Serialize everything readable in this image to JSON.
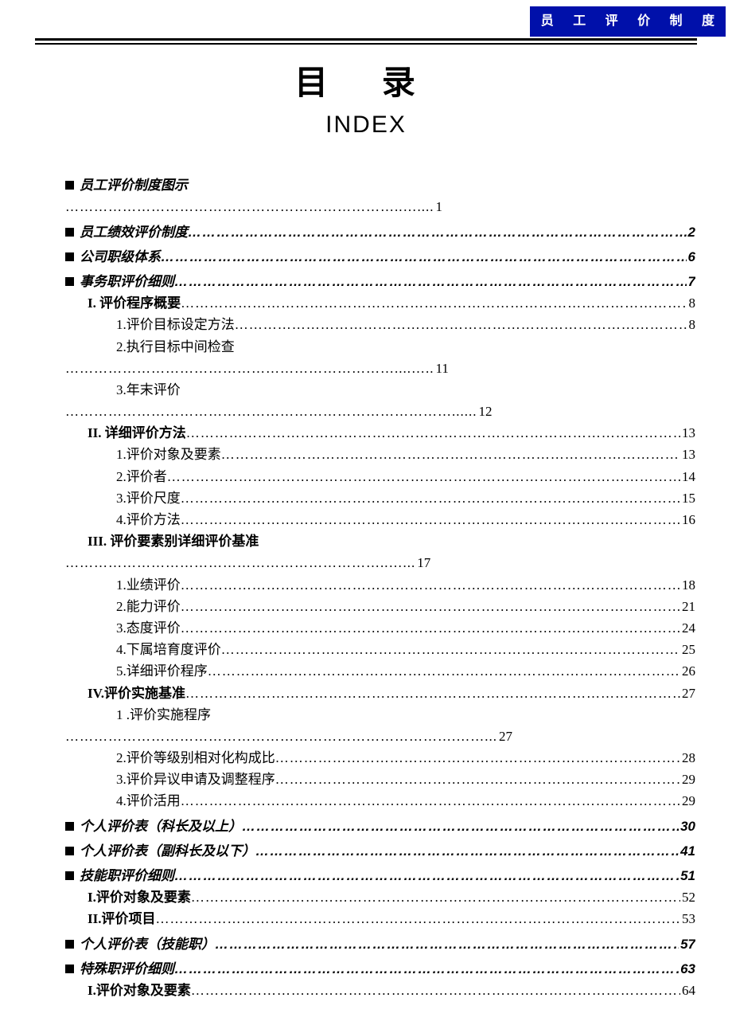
{
  "header_badge": "员 工 评 价 制 度",
  "title_cn": "目   录",
  "title_en": "INDEX",
  "toc": [
    {
      "level": 0,
      "label": "员工评价制度图示",
      "page": null
    },
    {
      "standalone_leader": true,
      "leader_text": "……………………………………………………………..…....",
      "page": "1"
    },
    {
      "level": 0,
      "label": "员工绩效评价制度",
      "page": "2"
    },
    {
      "level": 0,
      "label": "公司职级体系",
      "page": "6"
    },
    {
      "level": 0,
      "label": "事务职评价细则",
      "page": "7"
    },
    {
      "level": 1,
      "label": "I. 评价程序概要",
      "page": "8"
    },
    {
      "level": 2,
      "label": "1.评价目标设定方法",
      "page": "8"
    },
    {
      "level": 2,
      "label": "2.执行目标中间检查",
      "page": null
    },
    {
      "standalone_leader": true,
      "leader_text": "……………………………………………………………....…..",
      "page": "11"
    },
    {
      "level": 2,
      "label": "3.年末评价",
      "page": null
    },
    {
      "standalone_leader": true,
      "leader_text": "………………………………………………………………………......",
      "page": "12"
    },
    {
      "level": 1,
      "label": "II. 详细评价方法",
      "page": "13"
    },
    {
      "level": 2,
      "label": "1.评价对象及要素",
      "page": "13"
    },
    {
      "level": 2,
      "label": "2.评价者",
      "page": "14"
    },
    {
      "level": 2,
      "label": "3.评价尺度",
      "page": "15"
    },
    {
      "level": 2,
      "label": "4.评价方法",
      "page": "16"
    },
    {
      "level": 1,
      "label": "III. 评价要素别详细评价基准",
      "page": null
    },
    {
      "standalone_leader": true,
      "leader_text": "…………………………………………………………..…...",
      "page": "17"
    },
    {
      "level": 2,
      "label": "1.业绩评价",
      "page": "18"
    },
    {
      "level": 2,
      "label": "2.能力评价",
      "page": "21"
    },
    {
      "level": 2,
      "label": "3.态度评价",
      "page": "24"
    },
    {
      "level": 2,
      "label": "4.下属培育度评价",
      "page": "25"
    },
    {
      "level": 2,
      "label": "5.详细评价程序",
      "page": "26"
    },
    {
      "level": 1,
      "label": "IV.评价实施基准",
      "page": "27"
    },
    {
      "level": 2,
      "label": "1 .评价实施程序",
      "page": null
    },
    {
      "standalone_leader": true,
      "leader_text": "……………………………………………………………………….……...",
      "page": "27"
    },
    {
      "level": 2,
      "label": "2.评价等级别相对化构成比",
      "page": "28"
    },
    {
      "level": 2,
      "label": "3.评价异议申请及调整程序",
      "page": "29"
    },
    {
      "level": 2,
      "label": "4.评价活用",
      "page": "29"
    },
    {
      "level": 0,
      "label": "个人评价表（科长及以上）",
      "page": "30"
    },
    {
      "level": 0,
      "label": "个人评价表（副科长及以下）",
      "page": "41"
    },
    {
      "level": 0,
      "label": "技能职评价细则",
      "page": "51"
    },
    {
      "level": 1,
      "label": "I.评价对象及要素",
      "page": "52"
    },
    {
      "level": 1,
      "label": "II.评价项目",
      "page": "53"
    },
    {
      "level": 0,
      "label": "个人评价表（技能职）",
      "page": "57"
    },
    {
      "level": 0,
      "label": "特殊职评价细则",
      "page": "63"
    },
    {
      "level": 1,
      "label": "I.评价对象及要素",
      "page": "64"
    }
  ]
}
